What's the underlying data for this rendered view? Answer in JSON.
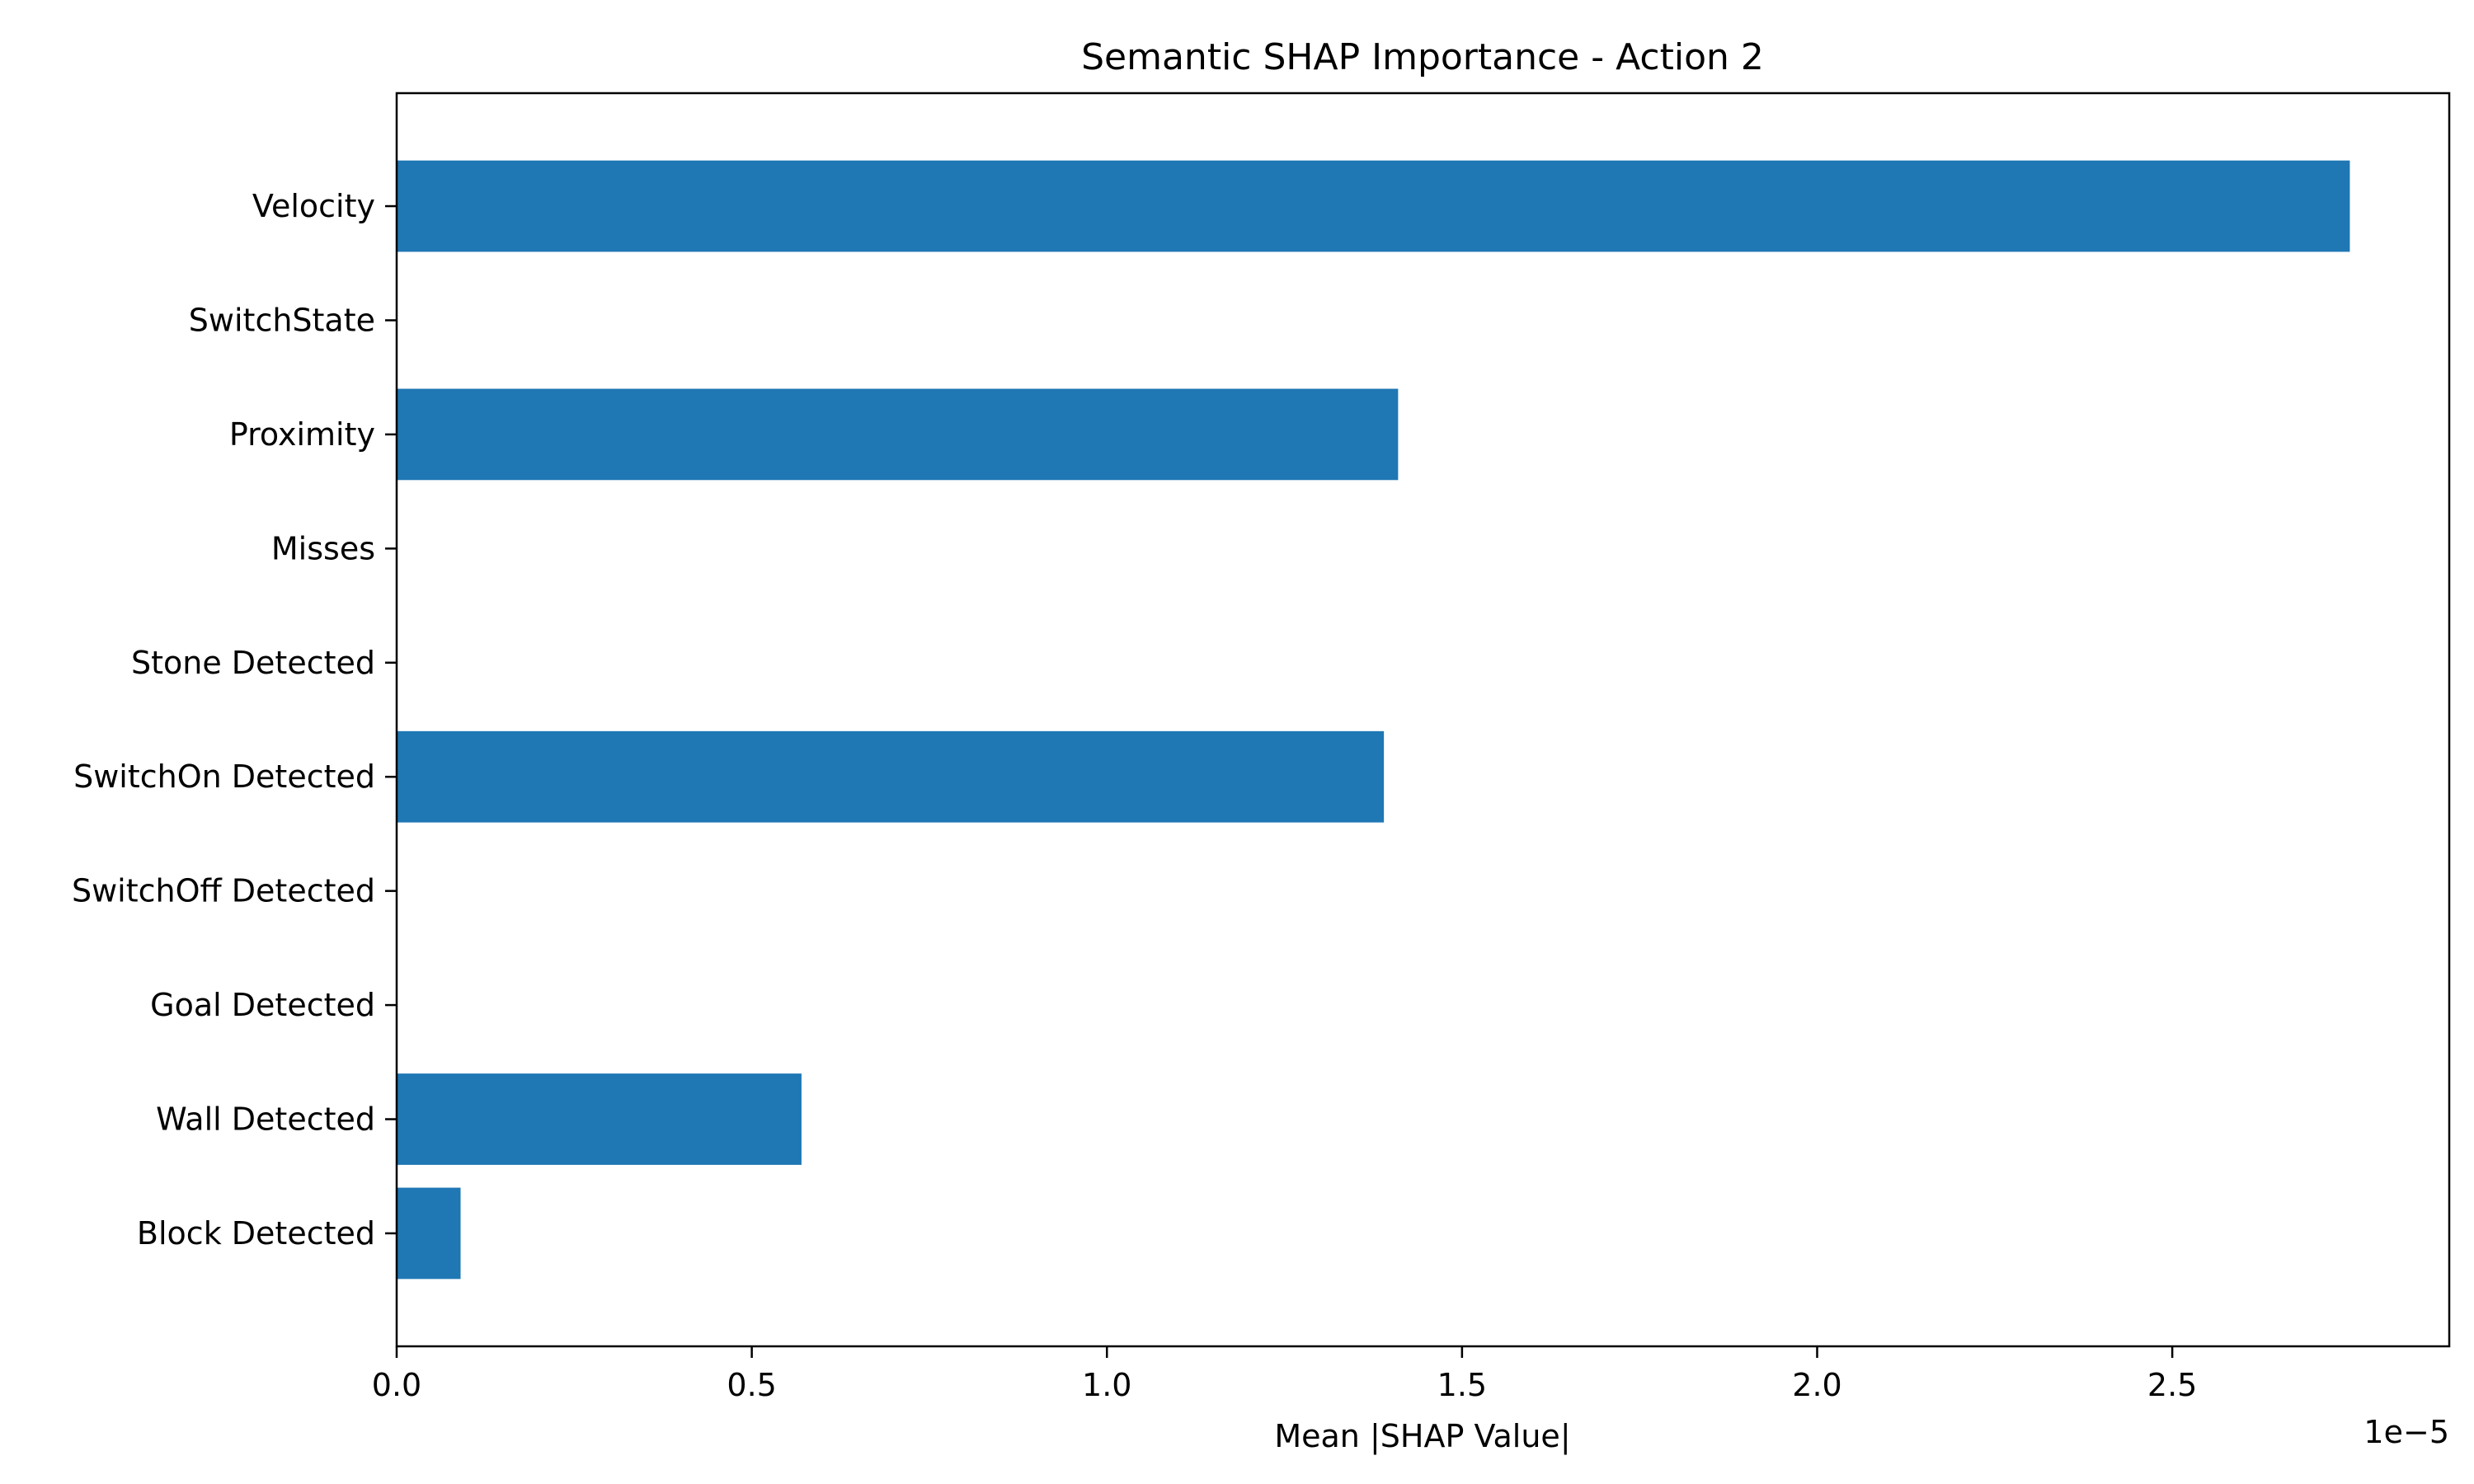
{
  "chart_data": {
    "type": "bar",
    "orientation": "horizontal",
    "title": "Semantic SHAP Importance - Action 2",
    "xlabel": "Mean |SHAP Value|",
    "ylabel": "",
    "offset_label": "1e−5",
    "categories": [
      "Velocity",
      "SwitchState",
      "Proximity",
      "Misses",
      "Stone Detected",
      "SwitchOn Detected",
      "SwitchOff Detected",
      "Goal Detected",
      "Wall Detected",
      "Block Detected"
    ],
    "values": [
      2.75,
      0,
      1.41,
      0,
      0,
      1.39,
      0,
      0,
      0.57,
      0.09
    ],
    "value_scale": 1e-05,
    "xlim": [
      0,
      2.89
    ],
    "xticks": [
      0.0,
      0.5,
      1.0,
      1.5,
      2.0,
      2.5
    ],
    "xtick_labels": [
      "0.0",
      "0.5",
      "1.0",
      "1.5",
      "2.0",
      "2.5"
    ],
    "grid": false,
    "bar_color": "#1f77b4"
  }
}
